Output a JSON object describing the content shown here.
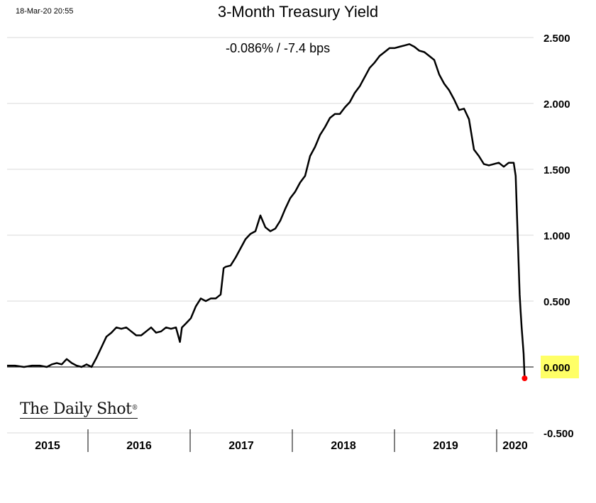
{
  "timestamp": "18-Mar-20 20:55",
  "change_text": "-0.086%  /  -7.4 bps",
  "logo_text": "The Daily Shot",
  "logo_mark": "®",
  "colors": {
    "line": "#000000",
    "last_point": "#ff0000",
    "highlight": "#ffff66",
    "grid": "#d9d9d9"
  },
  "chart_data": {
    "type": "line",
    "title": "3-Month Treasury Yield",
    "xlabel": "",
    "ylabel": "",
    "ylim": [
      -0.5,
      2.5
    ],
    "yticks": [
      "2.500",
      "2.000",
      "1.500",
      "1.000",
      "0.500",
      "0.000",
      "-0.500"
    ],
    "ytick_values": [
      2.5,
      2.0,
      1.5,
      1.0,
      0.5,
      0.0,
      -0.5
    ],
    "x_categories": [
      "2015",
      "2016",
      "2017",
      "2018",
      "2019",
      "2020"
    ],
    "xlim": [
      2015.0,
      2020.3
    ],
    "highlighted_value_label": "0.000",
    "last_value": -0.086,
    "grid": "horizontal",
    "series": [
      {
        "x": [
          2015.0,
          2015.08,
          2015.17,
          2015.25,
          2015.33,
          2015.4,
          2015.45,
          2015.5,
          2015.55,
          2015.6,
          2015.65,
          2015.7,
          2015.75,
          2015.8,
          2015.85,
          2015.9,
          2015.95,
          2016.0,
          2016.05,
          2016.1,
          2016.15,
          2016.2,
          2016.25,
          2016.3,
          2016.35,
          2016.4,
          2016.45,
          2016.5,
          2016.55,
          2016.6,
          2016.65,
          2016.7,
          2016.74,
          2016.76,
          2016.8,
          2016.85,
          2016.9,
          2016.95,
          2017.0,
          2017.05,
          2017.1,
          2017.15,
          2017.18,
          2017.2,
          2017.25,
          2017.3,
          2017.35,
          2017.4,
          2017.45,
          2017.5,
          2017.55,
          2017.6,
          2017.65,
          2017.7,
          2017.75,
          2017.8,
          2017.85,
          2017.9,
          2017.95,
          2018.0,
          2018.05,
          2018.1,
          2018.15,
          2018.2,
          2018.25,
          2018.3,
          2018.35,
          2018.4,
          2018.45,
          2018.5,
          2018.55,
          2018.6,
          2018.65,
          2018.7,
          2018.75,
          2018.8,
          2018.85,
          2018.9,
          2018.95,
          2019.0,
          2019.05,
          2019.1,
          2019.15,
          2019.2,
          2019.25,
          2019.3,
          2019.35,
          2019.4,
          2019.45,
          2019.5,
          2019.55,
          2019.6,
          2019.65,
          2019.7,
          2019.75,
          2019.8,
          2019.85,
          2019.9,
          2019.95,
          2020.0,
          2020.05,
          2020.1,
          2020.12,
          2020.14,
          2020.16,
          2020.17,
          2020.18,
          2020.19,
          2020.2,
          2020.21
        ],
        "values": [
          0.01,
          0.01,
          0.0,
          0.01,
          0.01,
          0.0,
          0.02,
          0.03,
          0.02,
          0.06,
          0.03,
          0.01,
          0.0,
          0.02,
          0.0,
          0.07,
          0.15,
          0.23,
          0.26,
          0.3,
          0.29,
          0.3,
          0.27,
          0.24,
          0.24,
          0.27,
          0.3,
          0.26,
          0.27,
          0.3,
          0.29,
          0.3,
          0.19,
          0.3,
          0.33,
          0.37,
          0.46,
          0.52,
          0.5,
          0.52,
          0.52,
          0.55,
          0.75,
          0.76,
          0.77,
          0.83,
          0.9,
          0.97,
          1.01,
          1.03,
          1.15,
          1.06,
          1.03,
          1.05,
          1.11,
          1.2,
          1.28,
          1.33,
          1.4,
          1.45,
          1.6,
          1.67,
          1.76,
          1.82,
          1.89,
          1.92,
          1.92,
          1.97,
          2.01,
          2.08,
          2.13,
          2.2,
          2.27,
          2.31,
          2.36,
          2.39,
          2.42,
          2.42,
          2.43,
          2.44,
          2.45,
          2.43,
          2.4,
          2.39,
          2.36,
          2.33,
          2.22,
          2.15,
          2.1,
          2.03,
          1.95,
          1.96,
          1.88,
          1.65,
          1.6,
          1.54,
          1.53,
          1.54,
          1.55,
          1.52,
          1.55,
          1.55,
          1.45,
          1.0,
          0.55,
          0.42,
          0.3,
          0.2,
          0.1,
          -0.086
        ]
      }
    ]
  }
}
